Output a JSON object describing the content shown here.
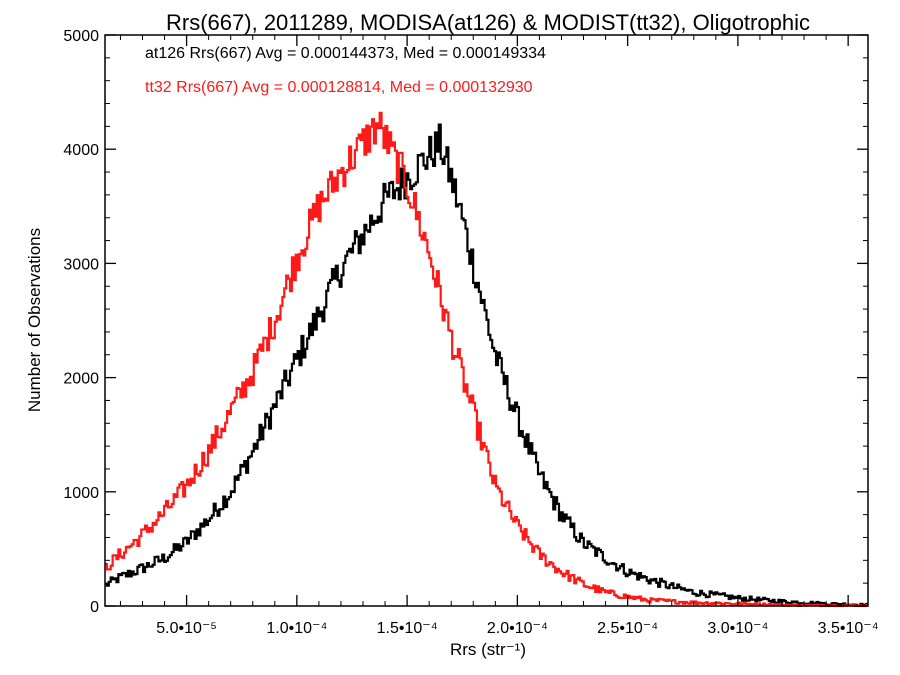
{
  "chart_data": {
    "type": "line",
    "title": "Rrs(667), 2011289, MODISA(at126) & MODIST(tt32), Oligotrophic",
    "xlabel": "Rrs (str⁻¹)",
    "ylabel": "Number of Observations",
    "xlim": [
      1.3e-05,
      0.000359
    ],
    "ylim": [
      0,
      5000
    ],
    "x_ticks": [
      5e-05,
      0.0001,
      0.00015,
      0.0002,
      0.00025,
      0.0003,
      0.00035
    ],
    "x_tick_labels": [
      "5.0•10⁻⁵",
      "1.0•10⁻⁴",
      "1.5•10⁻⁴",
      "2.0•10⁻⁴",
      "2.5•10⁻⁴",
      "3.0•10⁻⁴",
      "3.5•10⁻⁴"
    ],
    "y_ticks": [
      0,
      1000,
      2000,
      3000,
      4000,
      5000
    ],
    "y_tick_labels": [
      "0",
      "1000",
      "2000",
      "3000",
      "4000",
      "5000"
    ],
    "grid": false,
    "legend": "top-left",
    "annotations": [
      {
        "text": "at126 Rrs(667) Avg = 0.000144373, Med = 0.000149334",
        "color": "#000000"
      },
      {
        "text": "tt32 Rrs(667) Avg = 0.000128814, Med = 0.000132930",
        "color": "#ff1a1a"
      }
    ],
    "series": [
      {
        "color": "#000000",
        "step": "histogram",
        "x": [
          1.3e-05,
          2e-05,
          3e-05,
          4e-05,
          5e-05,
          6e-05,
          7e-05,
          8e-05,
          9e-05,
          0.0001,
          0.00011,
          0.00012,
          0.00013,
          0.00014,
          0.00015,
          0.00016,
          0.000165,
          0.00017,
          0.000175,
          0.00018,
          0.00019,
          0.0002,
          0.00021,
          0.00022,
          0.00023,
          0.00024,
          0.00025,
          0.00026,
          0.00027,
          0.00028,
          0.0003,
          0.00032,
          0.00034,
          0.000359
        ],
        "y": [
          180,
          250,
          330,
          420,
          560,
          760,
          1000,
          1350,
          1750,
          2150,
          2550,
          2950,
          3250,
          3550,
          3750,
          3950,
          4050,
          3750,
          3400,
          3000,
          2200,
          1650,
          1150,
          800,
          550,
          420,
          300,
          230,
          170,
          120,
          70,
          40,
          20,
          10
        ]
      },
      {
        "color": "#ff1a1a",
        "step": "histogram",
        "x": [
          1.3e-05,
          2e-05,
          3e-05,
          4e-05,
          5e-05,
          6e-05,
          7e-05,
          8e-05,
          9e-05,
          0.0001,
          0.00011,
          0.00012,
          0.00013,
          0.000137,
          0.00014,
          0.00015,
          0.00016,
          0.00017,
          0.00018,
          0.00019,
          0.0002,
          0.00021,
          0.00022,
          0.00023,
          0.00024,
          0.00025,
          0.00026,
          0.00027,
          0.00028,
          0.0003,
          0.00032,
          0.00034,
          0.000359
        ],
        "y": [
          330,
          450,
          620,
          820,
          1050,
          1350,
          1700,
          2050,
          2500,
          3050,
          3500,
          3800,
          4050,
          4220,
          4100,
          3700,
          3100,
          2350,
          1700,
          1050,
          700,
          450,
          300,
          190,
          120,
          80,
          50,
          40,
          30,
          20,
          10,
          5,
          3
        ]
      }
    ]
  }
}
